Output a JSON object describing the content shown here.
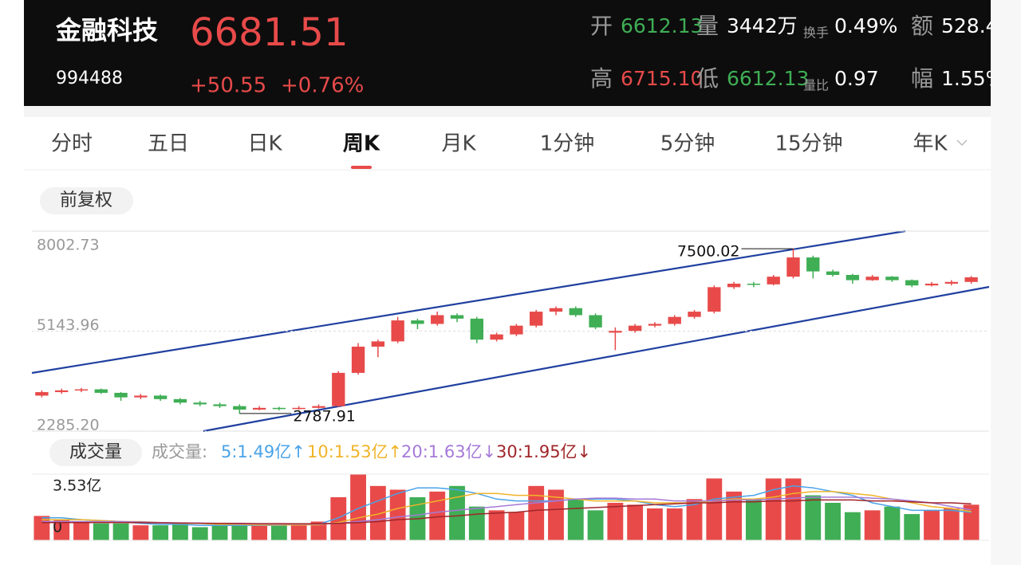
{
  "header": {
    "name": "金融科技",
    "code": "994488",
    "price": 6681.51,
    "change": "+50.55",
    "change_pct": "+0.76%",
    "stats": [
      {
        "label": "开",
        "value": "6612.13",
        "tone": "down"
      },
      {
        "label": "量",
        "value": "3442万",
        "tone": "plain"
      },
      {
        "label": "换手",
        "value": "0.49%",
        "tone": "plain",
        "small": true
      },
      {
        "label": "额",
        "value": "528.4",
        "tone": "plain"
      },
      {
        "label": "高",
        "value": "6715.10",
        "tone": "up"
      },
      {
        "label": "低",
        "value": "6612.13",
        "tone": "down"
      },
      {
        "label": "量比",
        "value": "0.97",
        "tone": "plain",
        "small": true
      },
      {
        "label": "幅",
        "value": "1.55%",
        "tone": "plain"
      }
    ]
  },
  "tabs": {
    "items": [
      "分时",
      "五日",
      "日K",
      "周K",
      "月K",
      "1分钟",
      "5分钟",
      "15分钟",
      "年K"
    ],
    "active": 3
  },
  "adjust_button": "前复权",
  "chart_data": {
    "type": "candlestick",
    "up_color": "#e84a4a",
    "down_color": "#3fae55",
    "ylim": [
      2285.2,
      8002.73
    ],
    "yticks": [
      8002.73,
      5143.96,
      {
        "value": 2285.2,
        "label": "2285.20"
      }
    ],
    "candles": [
      [
        3300,
        3450,
        3250,
        3400
      ],
      [
        3400,
        3500,
        3350,
        3450
      ],
      [
        3450,
        3520,
        3400,
        3480
      ],
      [
        3480,
        3500,
        3350,
        3380
      ],
      [
        3380,
        3400,
        3150,
        3250
      ],
      [
        3250,
        3350,
        3200,
        3300
      ],
      [
        3300,
        3330,
        3150,
        3200
      ],
      [
        3200,
        3230,
        3050,
        3100
      ],
      [
        3100,
        3150,
        3000,
        3050
      ],
      [
        3050,
        3100,
        2950,
        3000
      ],
      [
        3000,
        3050,
        2787.91,
        2900
      ],
      [
        2900,
        3000,
        2880,
        2950
      ],
      [
        2950,
        2980,
        2880,
        2920
      ],
      [
        2920,
        3000,
        2900,
        2950
      ],
      [
        2950,
        3050,
        2930,
        3000
      ],
      [
        3000,
        4000,
        2980,
        3950
      ],
      [
        3950,
        4800,
        3900,
        4700
      ],
      [
        4700,
        4900,
        4400,
        4850
      ],
      [
        4850,
        5550,
        4800,
        5450
      ],
      [
        5450,
        5500,
        5200,
        5350
      ],
      [
        5350,
        5700,
        5300,
        5600
      ],
      [
        5600,
        5650,
        5400,
        5500
      ],
      [
        5500,
        5550,
        4800,
        4900
      ],
      [
        4900,
        5100,
        4850,
        5050
      ],
      [
        5050,
        5350,
        5000,
        5300
      ],
      [
        5300,
        5750,
        5250,
        5700
      ],
      [
        5700,
        5850,
        5600,
        5800
      ],
      [
        5800,
        5850,
        5550,
        5600
      ],
      [
        5600,
        5650,
        5200,
        5250
      ],
      [
        5100,
        5250,
        4600,
        5150
      ],
      [
        5150,
        5350,
        5100,
        5300
      ],
      [
        5300,
        5400,
        5250,
        5350
      ],
      [
        5350,
        5600,
        5300,
        5550
      ],
      [
        5550,
        5750,
        5500,
        5700
      ],
      [
        5700,
        6450,
        5650,
        6400
      ],
      [
        6400,
        6550,
        6350,
        6500
      ],
      [
        6500,
        6550,
        6400,
        6480
      ],
      [
        6480,
        6750,
        6450,
        6700
      ],
      [
        6700,
        7500.02,
        6650,
        7250
      ],
      [
        7250,
        7300,
        6650,
        6850
      ],
      [
        6850,
        6900,
        6700,
        6750
      ],
      [
        6750,
        6780,
        6500,
        6600
      ],
      [
        6600,
        6750,
        6580,
        6700
      ],
      [
        6700,
        6720,
        6550,
        6600
      ],
      [
        6600,
        6620,
        6400,
        6450
      ],
      [
        6450,
        6550,
        6420,
        6500
      ],
      [
        6500,
        6600,
        6450,
        6550
      ],
      [
        6550,
        6720,
        6500,
        6681.51
      ]
    ],
    "max_index": 38,
    "min_index": 10,
    "volume": {
      "button": "成交量",
      "label": "成交量:",
      "ylim": [
        0,
        3.53
      ],
      "yticks": [
        {
          "value": 3.53,
          "label": "3.53亿"
        },
        0
      ],
      "values": [
        1.3,
        1.1,
        1.0,
        0.9,
        0.9,
        0.8,
        0.8,
        0.9,
        0.7,
        0.8,
        0.8,
        0.9,
        0.8,
        0.9,
        1.0,
        2.3,
        3.53,
        2.9,
        2.7,
        2.3,
        2.6,
        2.9,
        1.8,
        1.6,
        1.5,
        2.9,
        2.7,
        2.2,
        1.6,
        2.0,
        1.9,
        1.7,
        1.7,
        2.2,
        3.3,
        2.6,
        2.2,
        3.3,
        3.3,
        2.4,
        2.0,
        1.5,
        1.6,
        1.8,
        1.4,
        1.6,
        1.7,
        1.9
      ],
      "series": [
        {
          "name": "5:1.49亿↑",
          "color": "#4aa3e8",
          "values": [
            1.2,
            1.2,
            1.1,
            1.05,
            1.0,
            0.9,
            0.85,
            0.85,
            0.8,
            0.8,
            0.8,
            0.8,
            0.8,
            0.85,
            0.85,
            1.2,
            1.7,
            2.1,
            2.5,
            2.8,
            2.8,
            2.7,
            2.5,
            2.2,
            2.1,
            2.1,
            2.1,
            2.2,
            2.2,
            2.2,
            2.1,
            1.9,
            1.8,
            1.9,
            2.2,
            2.3,
            2.4,
            2.7,
            2.9,
            2.8,
            2.6,
            2.4,
            2.0,
            1.8,
            1.6,
            1.6,
            1.6,
            1.49
          ]
        },
        {
          "name": "10:1.53亿↑",
          "color": "#f0b429",
          "values": [
            1.1,
            1.1,
            1.1,
            1.05,
            1.0,
            1.0,
            0.95,
            0.9,
            0.9,
            0.85,
            0.85,
            0.82,
            0.82,
            0.82,
            0.83,
            0.95,
            1.2,
            1.4,
            1.7,
            1.9,
            2.1,
            2.3,
            2.5,
            2.5,
            2.4,
            2.4,
            2.3,
            2.2,
            2.1,
            2.1,
            2.1,
            2.0,
            2.0,
            2.0,
            2.1,
            2.2,
            2.2,
            2.3,
            2.5,
            2.6,
            2.6,
            2.5,
            2.4,
            2.2,
            2.0,
            1.8,
            1.7,
            1.53
          ]
        },
        {
          "name": "20:1.63亿↓",
          "color": "#a57ad8",
          "values": [
            1.0,
            1.0,
            1.0,
            1.0,
            1.0,
            0.98,
            0.95,
            0.93,
            0.92,
            0.9,
            0.88,
            0.87,
            0.86,
            0.86,
            0.86,
            0.9,
            1.0,
            1.1,
            1.25,
            1.35,
            1.5,
            1.6,
            1.7,
            1.8,
            1.9,
            2.0,
            2.1,
            2.2,
            2.25,
            2.25,
            2.2,
            2.2,
            2.1,
            2.1,
            2.1,
            2.15,
            2.15,
            2.2,
            2.25,
            2.3,
            2.3,
            2.3,
            2.25,
            2.2,
            2.1,
            2.0,
            1.8,
            1.63
          ]
        },
        {
          "name": "30:1.95亿↓",
          "color": "#a0252a",
          "values": [
            0.95,
            0.95,
            0.95,
            0.95,
            0.95,
            0.94,
            0.93,
            0.92,
            0.91,
            0.9,
            0.9,
            0.89,
            0.89,
            0.88,
            0.88,
            0.9,
            0.95,
            1.0,
            1.1,
            1.15,
            1.25,
            1.3,
            1.4,
            1.45,
            1.5,
            1.6,
            1.65,
            1.7,
            1.75,
            1.8,
            1.85,
            1.9,
            1.95,
            2.0,
            2.0,
            2.05,
            2.05,
            2.1,
            2.1,
            2.15,
            2.15,
            2.15,
            2.1,
            2.1,
            2.05,
            2.0,
            2.0,
            1.95
          ]
        }
      ]
    }
  }
}
